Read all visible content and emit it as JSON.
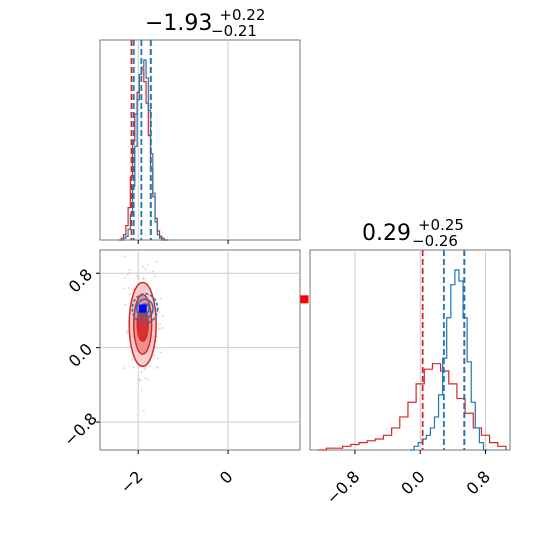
{
  "chart_data": [
    {
      "type": "histogram",
      "panel": "top-left marginal",
      "title": {
        "value": "−1.93",
        "upper": "+0.22",
        "lower": "−0.21"
      },
      "xlim": [
        -2.85,
        1.6
      ],
      "grid": true,
      "series": [
        {
          "color": "#d62728",
          "kind": "step",
          "x": [
            -2.4,
            -2.35,
            -2.3,
            -2.25,
            -2.2,
            -2.15,
            -2.1,
            -2.05,
            -2.0,
            -1.95,
            -1.9,
            -1.85,
            -1.8,
            -1.75,
            -1.7,
            -1.65,
            -1.6,
            -1.55,
            -1.5,
            -1.45,
            -1.4,
            -1.35
          ],
          "counts": [
            0,
            1,
            3,
            8,
            18,
            35,
            55,
            70,
            82,
            92,
            95,
            88,
            76,
            58,
            40,
            24,
            12,
            5,
            2,
            1,
            0,
            0
          ]
        },
        {
          "color": "#1f77b4",
          "kind": "step",
          "x": [
            -2.4,
            -2.35,
            -2.3,
            -2.25,
            -2.2,
            -2.15,
            -2.1,
            -2.05,
            -2.0,
            -1.95,
            -1.9,
            -1.85,
            -1.8,
            -1.75,
            -1.7,
            -1.65,
            -1.6,
            -1.55,
            -1.5,
            -1.45,
            -1.4,
            -1.35
          ],
          "counts": [
            0,
            0,
            1,
            2,
            6,
            14,
            30,
            52,
            78,
            92,
            96,
            100,
            90,
            72,
            48,
            26,
            10,
            3,
            1,
            0,
            0,
            0
          ]
        }
      ],
      "quantile_lines": [
        {
          "x": -2.15,
          "color": "#d62728"
        },
        {
          "x": -1.72,
          "color": "#d62728"
        },
        {
          "x": -2.1,
          "color": "#1f77b4"
        },
        {
          "x": -1.93,
          "color": "#1f77b4"
        },
        {
          "x": -1.72,
          "color": "#1f77b4"
        }
      ]
    },
    {
      "type": "contour",
      "panel": "bottom-left 2D",
      "xlim": [
        -2.85,
        1.6
      ],
      "ylim": [
        -1.1,
        1.05
      ],
      "xticks": [
        -2,
        0
      ],
      "xtick_labels": [
        "−2",
        "0"
      ],
      "yticks": [
        -0.8,
        0.0,
        0.8
      ],
      "ytick_labels": [
        "−0.8",
        "0.0",
        "0.8"
      ],
      "grid": true,
      "red_contours": {
        "center": [
          -1.9,
          0.25
        ],
        "sigma_x": [
          0.12,
          0.2,
          0.3
        ],
        "sigma_y": [
          0.18,
          0.32,
          0.45
        ]
      },
      "blue_contours": {
        "center": [
          -1.85,
          0.42
        ],
        "sigma_x": [
          0.1,
          0.18,
          0.28
        ],
        "sigma_y": [
          0.05,
          0.1,
          0.16
        ]
      },
      "markers": [
        {
          "x": -1.9,
          "y": 0.42,
          "color": "#0000ff"
        },
        {
          "x": 1.7,
          "y": 0.52,
          "color": "#ff0000"
        }
      ]
    },
    {
      "type": "histogram",
      "panel": "bottom-right marginal",
      "title": {
        "value": "0.29",
        "upper": "+0.25",
        "lower": "−0.26"
      },
      "xlim": [
        -1.35,
        1.1
      ],
      "xticks": [
        -0.8,
        0.0,
        0.8
      ],
      "xtick_labels": [
        "−0.8",
        "0.0",
        "0.8"
      ],
      "grid": true,
      "series": [
        {
          "color": "#d62728",
          "kind": "step",
          "x": [
            -1.2,
            -1.1,
            -1.0,
            -0.9,
            -0.8,
            -0.7,
            -0.6,
            -0.5,
            -0.4,
            -0.3,
            -0.2,
            -0.1,
            0.0,
            0.1,
            0.2,
            0.3,
            0.4,
            0.5,
            0.6,
            0.7,
            0.8,
            0.9,
            1.0
          ],
          "counts": [
            0,
            1,
            1,
            2,
            3,
            4,
            5,
            6,
            8,
            12,
            18,
            26,
            36,
            44,
            47,
            43,
            36,
            28,
            20,
            12,
            8,
            4,
            2
          ]
        },
        {
          "color": "#1f77b4",
          "kind": "step",
          "x": [
            -0.1,
            -0.05,
            0.0,
            0.05,
            0.1,
            0.15,
            0.2,
            0.25,
            0.3,
            0.35,
            0.4,
            0.45,
            0.5,
            0.55,
            0.6,
            0.65,
            0.7,
            0.75,
            0.8
          ],
          "counts": [
            0,
            2,
            4,
            6,
            8,
            12,
            18,
            30,
            50,
            72,
            90,
            98,
            92,
            72,
            48,
            26,
            12,
            4,
            0
          ]
        }
      ],
      "quantile_lines": [
        {
          "x": 0.03,
          "color": "#d62728"
        },
        {
          "x": 0.54,
          "color": "#d62728"
        },
        {
          "x": 0.29,
          "color": "#1f77b4"
        },
        {
          "x": 0.54,
          "color": "#1f77b4"
        }
      ]
    }
  ]
}
